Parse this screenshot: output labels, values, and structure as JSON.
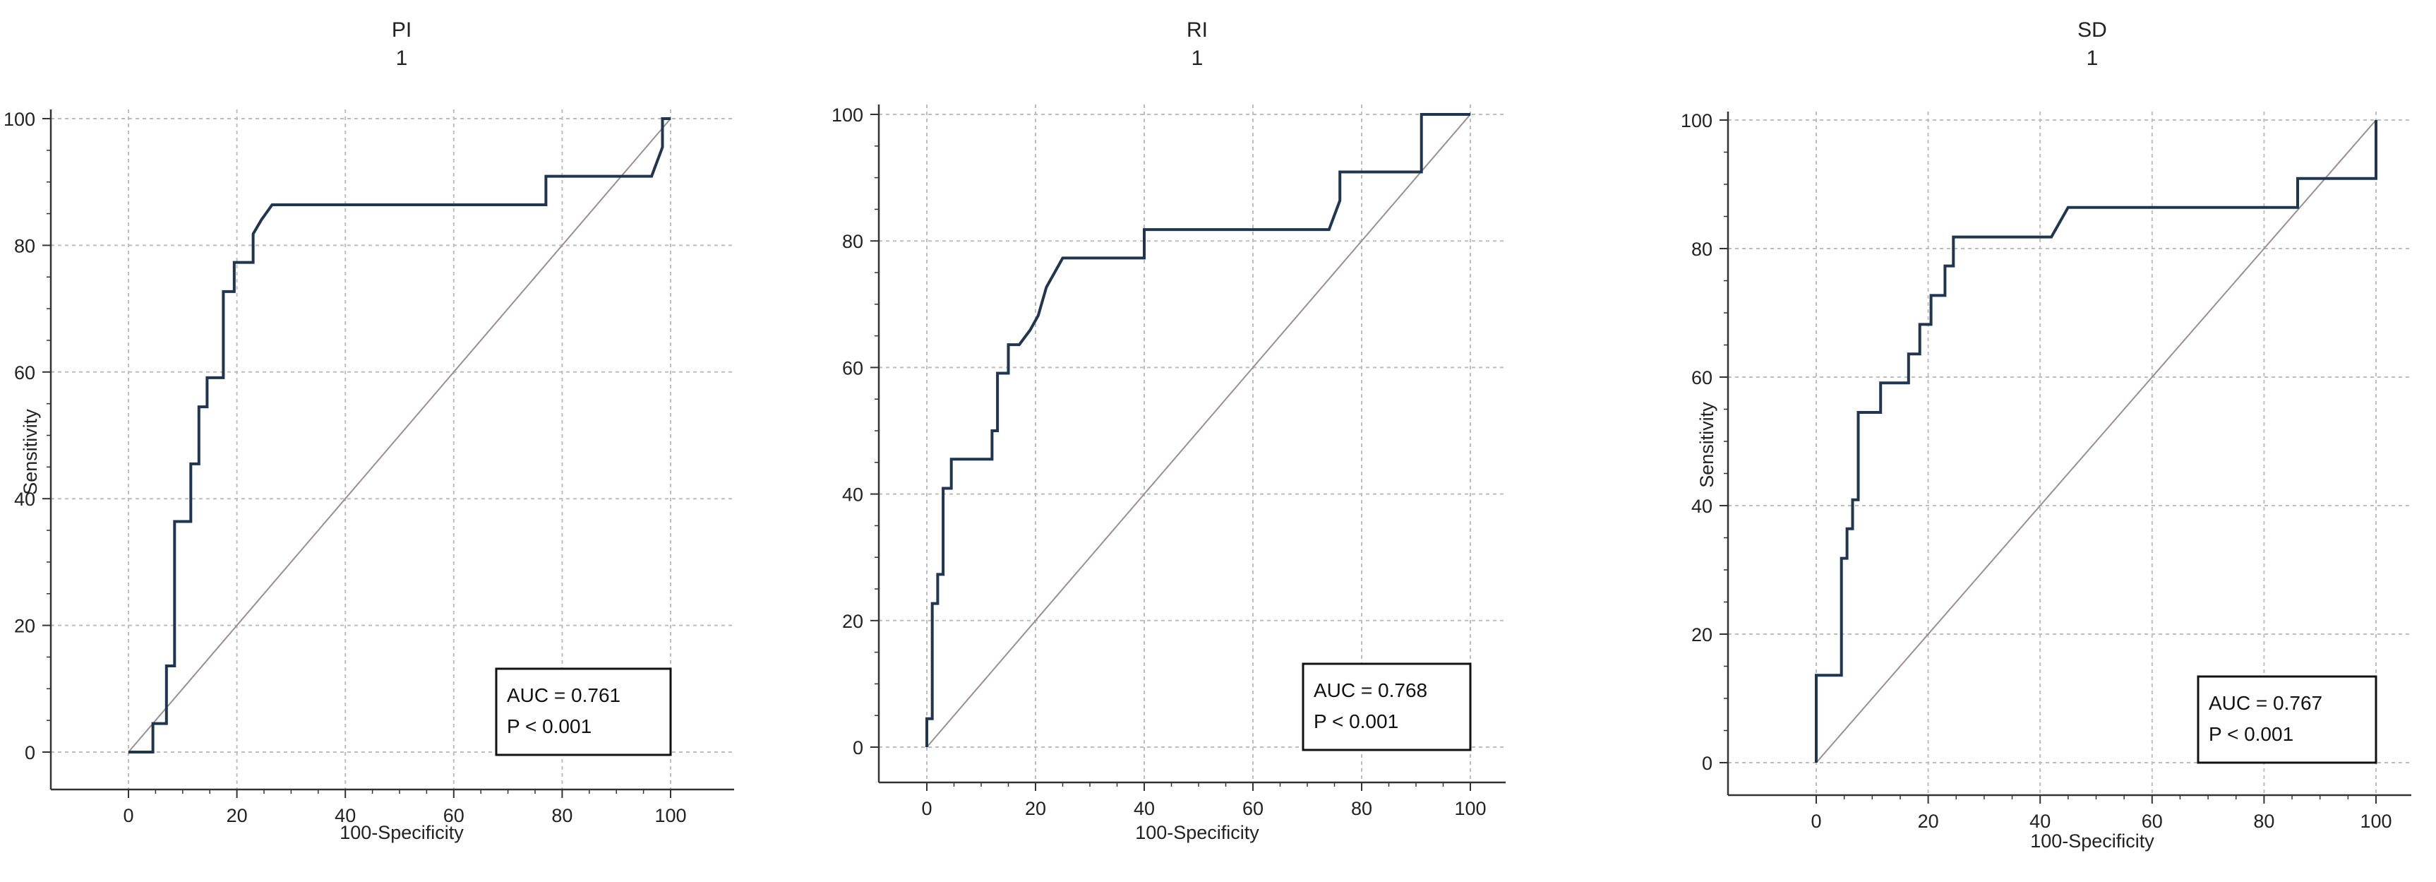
{
  "chart_data": [
    {
      "type": "line",
      "title": "PI",
      "subtitle": "1",
      "xlabel": "100-Specificity",
      "ylabel": "Sensitivity",
      "xlim": [
        0,
        100
      ],
      "ylim": [
        0,
        100
      ],
      "xticks": [
        0,
        20,
        40,
        60,
        80,
        100
      ],
      "yticks": [
        0,
        20,
        40,
        60,
        80,
        100
      ],
      "tick_labels_x": [
        "0",
        "20",
        "40",
        "60",
        "80",
        "100"
      ],
      "tick_labels_y": [
        "0",
        "20",
        "40",
        "60",
        "80",
        "100"
      ],
      "grid": true,
      "reference_line": true,
      "annotation": {
        "auc": "AUC = 0.761",
        "p": "P < 0.001",
        "placement": "bottom-right"
      },
      "series": [
        {
          "x": [
            0,
            4.5,
            4.5,
            7,
            7,
            8.5,
            8.5,
            11.5,
            11.5,
            13,
            13,
            14.5,
            14.5,
            17.5,
            17.5,
            19.5,
            19.5,
            23,
            23,
            24.5,
            26.5,
            77,
            77,
            96.5,
            98.5,
            98.5,
            100
          ],
          "y": [
            0,
            0,
            4.5,
            4.5,
            13.6,
            13.6,
            36.4,
            36.4,
            45.5,
            45.5,
            54.5,
            54.5,
            59.1,
            59.1,
            72.7,
            72.7,
            77.3,
            77.3,
            81.8,
            84,
            86.4,
            86.4,
            90.9,
            90.9,
            95.5,
            100,
            100
          ]
        }
      ]
    },
    {
      "type": "line",
      "title": "RI",
      "subtitle": "1",
      "xlabel": "100-Specificity",
      "ylabel": "",
      "xlim": [
        0,
        100
      ],
      "ylim": [
        0,
        100
      ],
      "xticks": [
        0,
        20,
        40,
        60,
        80,
        100
      ],
      "yticks": [
        0,
        20,
        40,
        60,
        80,
        100
      ],
      "tick_labels_x": [
        "0",
        "20",
        "40",
        "60",
        "80",
        "100"
      ],
      "tick_labels_y": [
        "0",
        "20",
        "40",
        "60",
        "80",
        "100"
      ],
      "grid": true,
      "reference_line": true,
      "annotation": {
        "auc": "AUC = 0.768",
        "p": "P < 0.001",
        "placement": "bottom-right"
      },
      "series": [
        {
          "x": [
            0,
            0,
            1,
            1,
            2,
            2,
            3,
            3,
            4.5,
            4.5,
            12,
            12,
            13,
            13,
            15,
            15,
            17,
            19,
            20.5,
            22,
            23.5,
            25,
            40,
            40,
            74,
            76,
            76,
            91,
            91,
            100
          ],
          "y": [
            0,
            4.5,
            4.5,
            22.7,
            22.7,
            27.3,
            27.3,
            40.9,
            40.9,
            45.5,
            45.5,
            50,
            50,
            59.1,
            59.1,
            63.6,
            63.6,
            65.9,
            68.2,
            72.7,
            75,
            77.3,
            77.3,
            81.8,
            81.8,
            86.4,
            90.9,
            90.9,
            100,
            100
          ]
        }
      ]
    },
    {
      "type": "line",
      "title": "SD",
      "subtitle": "1",
      "xlabel": "100-Specificity",
      "ylabel": "Sensitivity",
      "xlim": [
        0,
        100
      ],
      "ylim": [
        0,
        100
      ],
      "xticks": [
        0,
        20,
        40,
        60,
        80,
        100
      ],
      "yticks": [
        0,
        20,
        40,
        60,
        80,
        100
      ],
      "tick_labels_x": [
        "0",
        "20",
        "40",
        "60",
        "80",
        "100"
      ],
      "tick_labels_y": [
        "0",
        "20",
        "40",
        "60",
        "80",
        "100"
      ],
      "grid": true,
      "reference_line": true,
      "annotation": {
        "auc": "AUC = 0.767",
        "p": "P < 0.001",
        "placement": "bottom-right"
      },
      "series": [
        {
          "x": [
            0,
            0,
            4.5,
            4.5,
            5.5,
            5.5,
            6.5,
            6.5,
            7.5,
            7.5,
            11.5,
            11.5,
            16.5,
            16.5,
            18.5,
            18.5,
            20.5,
            20.5,
            23,
            23,
            24.5,
            24.5,
            32,
            32,
            42,
            45,
            86,
            86,
            91,
            91,
            100,
            100
          ],
          "y": [
            0,
            13.6,
            13.6,
            31.8,
            31.8,
            36.4,
            36.4,
            40.9,
            40.9,
            54.5,
            54.5,
            59.1,
            59.1,
            63.6,
            63.6,
            68.2,
            68.2,
            72.7,
            72.7,
            77.3,
            77.3,
            81.8,
            81.8,
            81.8,
            81.8,
            86.4,
            86.4,
            90.9,
            90.9,
            90.9,
            90.9,
            100
          ]
        }
      ]
    }
  ],
  "colors": {
    "roc": "#1f3550",
    "reference": "#9a8f8f",
    "grid": "#bdbdbd",
    "axis": "#333333"
  }
}
